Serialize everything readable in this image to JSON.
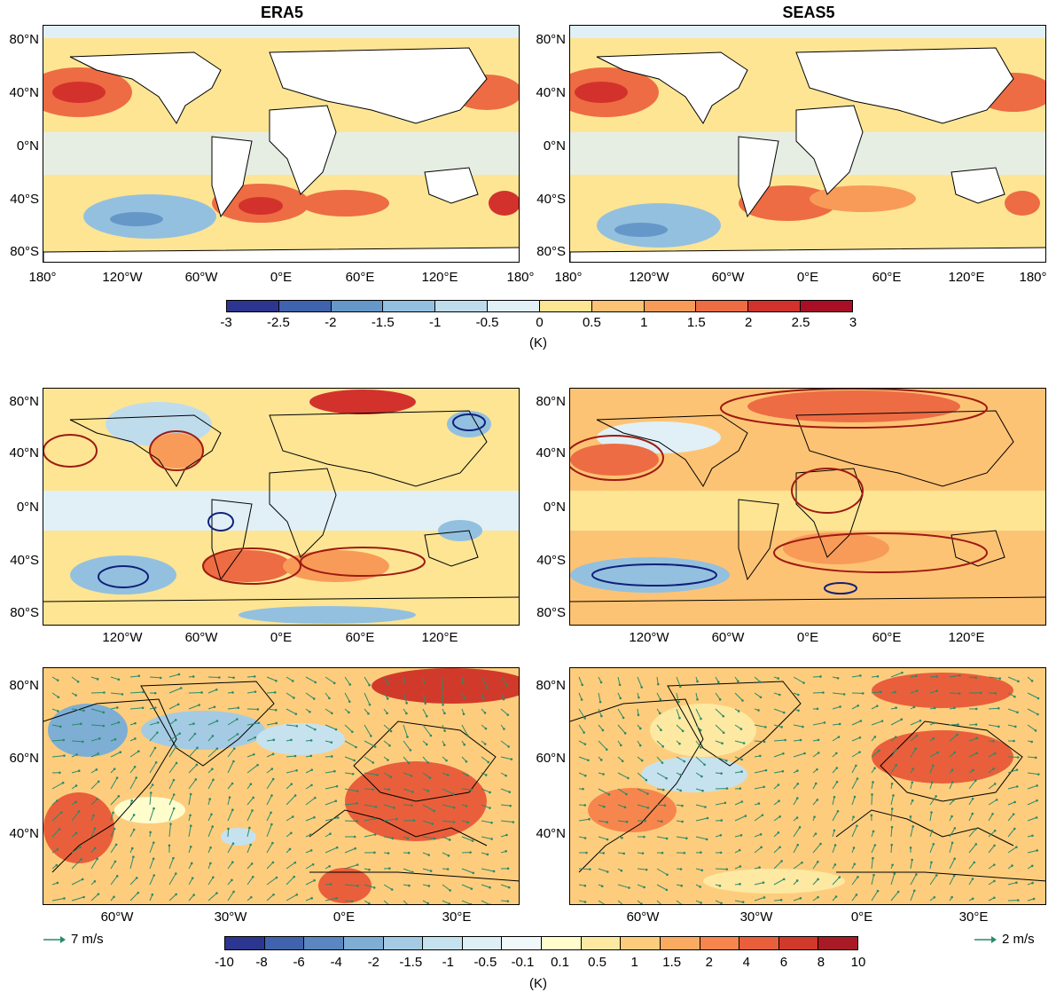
{
  "titles": {
    "left": "ERA5",
    "right": "SEAS5"
  },
  "global_lat_labels": [
    "80°N",
    "40°N",
    "0°N",
    "40°S",
    "80°S"
  ],
  "row1_lon_labels_left": [
    "180°",
    "120°W",
    "60°W",
    "0°E",
    "60°E",
    "120°E",
    "180°"
  ],
  "row1_lon_labels_right": [
    "180°",
    "120°W",
    "60°W",
    "0°E",
    "60°E",
    "120°E",
    "180°"
  ],
  "row2_lon_labels": [
    "120°W",
    "60°W",
    "0°E",
    "60°E",
    "120°E"
  ],
  "regional_lat_labels": [
    "80°N",
    "60°N",
    "40°N"
  ],
  "regional_lon_labels": [
    "60°W",
    "30°W",
    "0°E",
    "30°E"
  ],
  "colorbar_top": {
    "ticks": [
      "-3",
      "-2.5",
      "-2",
      "-1.5",
      "-1",
      "-0.5",
      "0",
      "0.5",
      "1",
      "1.5",
      "2",
      "2.5",
      "3"
    ],
    "colors": [
      "#2c3691",
      "#3f63ad",
      "#6597c9",
      "#93c0df",
      "#bfdcec",
      "#e0f0f6",
      "#fde594",
      "#fdc374",
      "#f89b58",
      "#ed6c43",
      "#d3322c",
      "#a80f26"
    ],
    "unit": "(K)"
  },
  "colorbar_bottom": {
    "ticks": [
      "-10",
      "-8",
      "-6",
      "-4",
      "-2",
      "-1.5",
      "-1",
      "-0.5",
      "-0.1",
      "0.1",
      "0.5",
      "1",
      "1.5",
      "2",
      "4",
      "6",
      "8",
      "10"
    ],
    "colors": [
      "#2c3691",
      "#3f63ad",
      "#5a86c1",
      "#7eaed4",
      "#a4cbe3",
      "#c6e2ef",
      "#deeff6",
      "#f0f8fa",
      "#fffdcc",
      "#fde9a2",
      "#fdcd7d",
      "#fbab61",
      "#f6864d",
      "#e95f3b",
      "#d13a2a",
      "#a81a26"
    ],
    "unit": "(K)"
  },
  "reference_vectors": {
    "left": "7 m/s",
    "right": "2 m/s",
    "color": "#2a8a6a"
  },
  "contour_colors": {
    "positive": "#9e1a12",
    "negative": "#10207a"
  }
}
